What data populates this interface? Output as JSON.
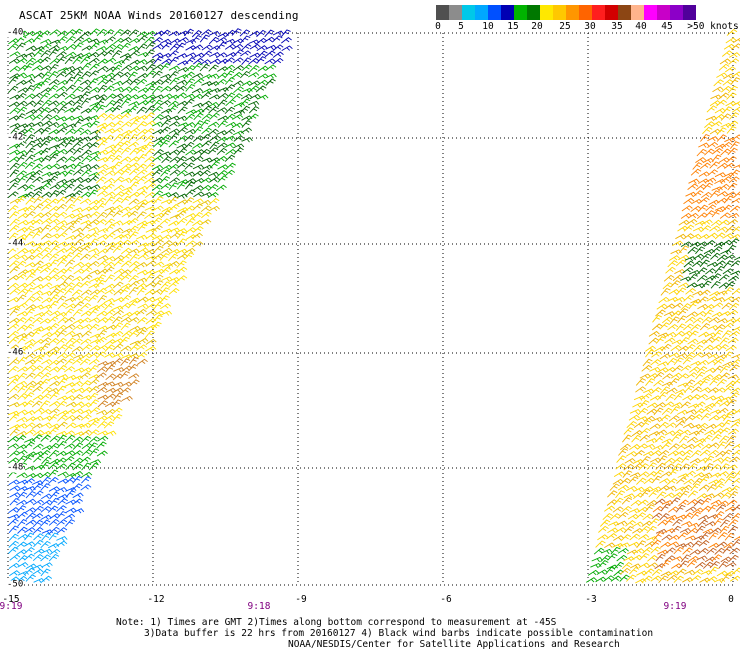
{
  "title": "ASCAT 25KM NOAA Winds 20160127 descending",
  "colors": {
    "scale": [
      "#505050",
      "#8c8c8c",
      "#00c8e8",
      "#00a8ff",
      "#0050ff",
      "#0000b4",
      "#00b400",
      "#007800",
      "#ffe800",
      "#ffc800",
      "#ff9600",
      "#ff6400",
      "#ff1e1e",
      "#d20000",
      "#8c4614",
      "#ffb48c",
      "#ff00ff",
      "#c800c8",
      "#8c00c8",
      "#50009b"
    ],
    "swath_left": [
      "#006400",
      "#00aa00",
      "#ffe000",
      "#e8c000"
    ],
    "swath_right": [
      "#ffd400",
      "#f0b400",
      "#ff8000",
      "#006400"
    ]
  },
  "scale_labels": [
    "0",
    "5",
    "10",
    "15",
    "20",
    "25",
    "30",
    "35",
    "40",
    "45",
    ">50 knots"
  ],
  "lat_labels": [
    "-40",
    "-42",
    "-44",
    "-46",
    "-48",
    "-50"
  ],
  "lon_labels": [
    "-15",
    "-12",
    "-9",
    "-6",
    "-3",
    "0"
  ],
  "time_labels": [
    "9:19",
    "9:18",
    "9:19"
  ],
  "notes": {
    "line1": "Note: 1) Times are GMT 2)Times along bottom correspond to measurement at -45S",
    "line2": "3)Data buffer is 22 hrs from 20160127 4) Black wind barbs indicate possible contamination",
    "line3": "NOAA/NESDIS/Center for Satellite Applications and Research"
  }
}
